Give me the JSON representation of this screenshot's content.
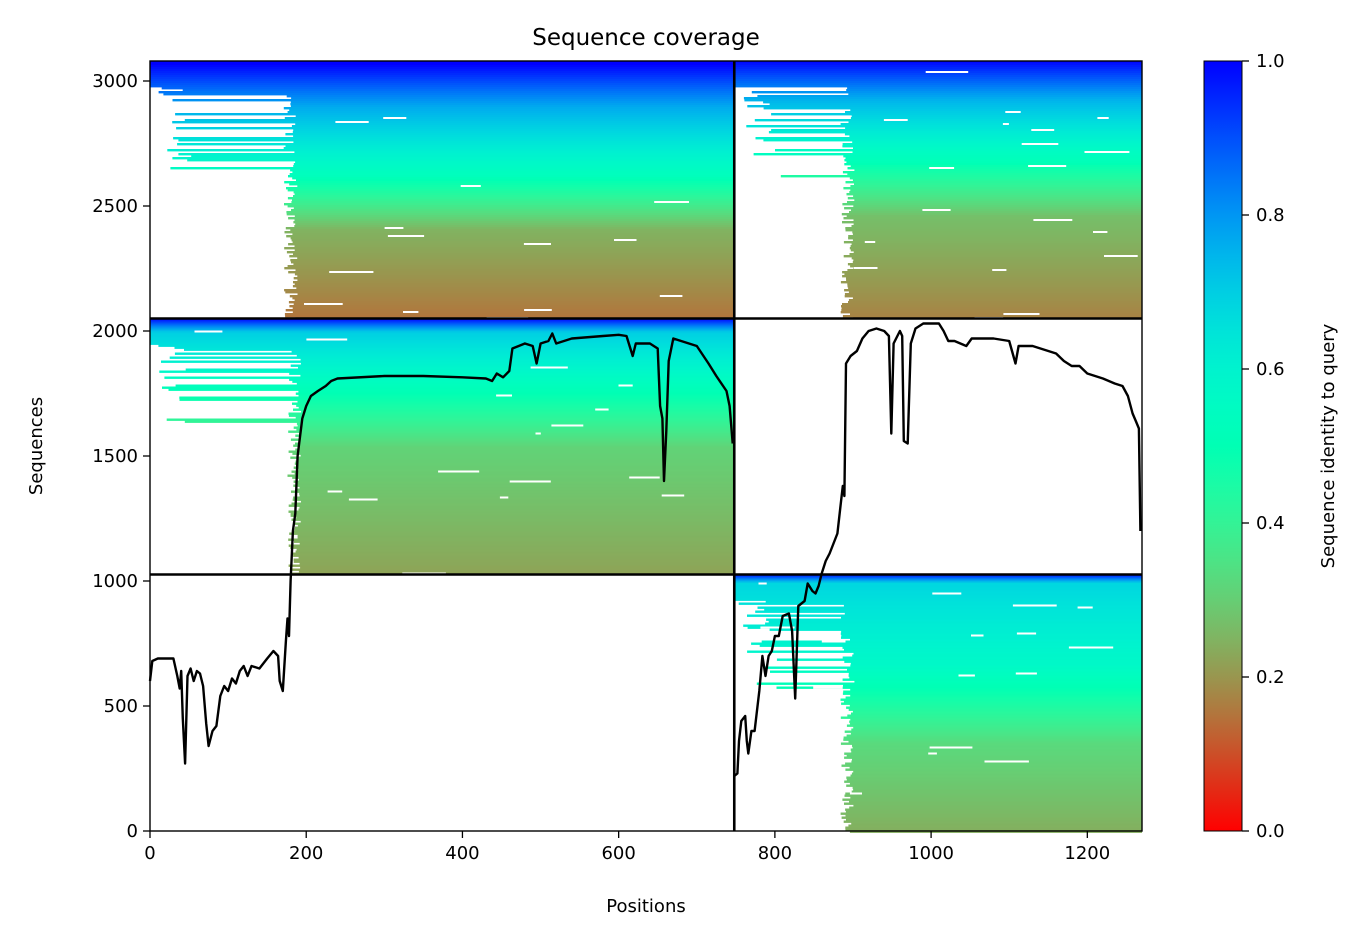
{
  "chart_data": {
    "type": "heatmap",
    "title": "Sequence coverage",
    "xlabel": "Positions",
    "ylabel": "Sequences",
    "xlim": [
      0,
      1270
    ],
    "ylim": [
      0,
      3080
    ],
    "x_ticks": [
      0,
      200,
      400,
      600,
      800,
      1000,
      1200
    ],
    "y_ticks": [
      0,
      500,
      1000,
      1500,
      2000,
      2500,
      3000
    ],
    "grid": false,
    "colormap": "rainbow_r",
    "chain_boundary_position": 748,
    "block_boundaries_sequences": [
      1026,
      2050
    ],
    "blocks": [
      {
        "x_range": [
          0,
          748
        ],
        "y_range": [
          2050,
          3080
        ],
        "coverage_start": 180,
        "profile": "top-left"
      },
      {
        "x_range": [
          748,
          1270
        ],
        "y_range": [
          2050,
          3080
        ],
        "coverage_start": 893,
        "profile": "top-right"
      },
      {
        "x_range": [
          0,
          748
        ],
        "y_range": [
          1026,
          2050
        ],
        "coverage_start": 185,
        "profile": "middle-left"
      },
      {
        "x_range": [
          748,
          1270
        ],
        "y_range": [
          0,
          1026
        ],
        "coverage_start": 893,
        "profile": "bottom-right"
      }
    ],
    "series": [
      {
        "type": "line",
        "color": "#000000",
        "points": [
          [
            0,
            600
          ],
          [
            3,
            680
          ],
          [
            10,
            690
          ],
          [
            20,
            690
          ],
          [
            30,
            690
          ],
          [
            35,
            620
          ],
          [
            38,
            570
          ],
          [
            40,
            640
          ],
          [
            42,
            450
          ],
          [
            45,
            270
          ],
          [
            48,
            620
          ],
          [
            52,
            650
          ],
          [
            56,
            600
          ],
          [
            60,
            640
          ],
          [
            64,
            630
          ],
          [
            68,
            580
          ],
          [
            72,
            430
          ],
          [
            75,
            340
          ],
          [
            80,
            400
          ],
          [
            85,
            420
          ],
          [
            90,
            540
          ],
          [
            95,
            580
          ],
          [
            100,
            560
          ],
          [
            105,
            610
          ],
          [
            110,
            590
          ],
          [
            115,
            640
          ],
          [
            120,
            660
          ],
          [
            125,
            620
          ],
          [
            130,
            660
          ],
          [
            140,
            650
          ],
          [
            150,
            690
          ],
          [
            158,
            720
          ],
          [
            164,
            700
          ],
          [
            166,
            600
          ],
          [
            170,
            560
          ],
          [
            174,
            760
          ],
          [
            176,
            850
          ],
          [
            178,
            780
          ],
          [
            180,
            1000
          ],
          [
            183,
            1200
          ],
          [
            186,
            1270
          ],
          [
            189,
            1500
          ],
          [
            195,
            1650
          ],
          [
            200,
            1700
          ],
          [
            206,
            1740
          ],
          [
            215,
            1760
          ],
          [
            225,
            1780
          ],
          [
            232,
            1800
          ],
          [
            240,
            1810
          ],
          [
            300,
            1820
          ],
          [
            350,
            1820
          ],
          [
            400,
            1815
          ],
          [
            430,
            1810
          ],
          [
            438,
            1800
          ],
          [
            444,
            1830
          ],
          [
            452,
            1815
          ],
          [
            460,
            1840
          ],
          [
            464,
            1930
          ],
          [
            472,
            1940
          ],
          [
            480,
            1950
          ],
          [
            490,
            1940
          ],
          [
            495,
            1870
          ],
          [
            500,
            1950
          ],
          [
            510,
            1960
          ],
          [
            515,
            1990
          ],
          [
            520,
            1950
          ],
          [
            540,
            1970
          ],
          [
            580,
            1980
          ],
          [
            600,
            1985
          ],
          [
            610,
            1980
          ],
          [
            618,
            1900
          ],
          [
            622,
            1950
          ],
          [
            640,
            1950
          ],
          [
            650,
            1930
          ],
          [
            653,
            1700
          ],
          [
            656,
            1650
          ],
          [
            658,
            1400
          ],
          [
            661,
            1600
          ],
          [
            664,
            1880
          ],
          [
            670,
            1970
          ],
          [
            680,
            1960
          ],
          [
            700,
            1940
          ],
          [
            715,
            1870
          ],
          [
            725,
            1820
          ],
          [
            738,
            1760
          ],
          [
            742,
            1700
          ],
          [
            746,
            1550
          ],
          [
            748,
            220
          ],
          [
            752,
            230
          ],
          [
            754,
            360
          ],
          [
            757,
            440
          ],
          [
            762,
            460
          ],
          [
            764,
            360
          ],
          [
            766,
            310
          ],
          [
            770,
            400
          ],
          [
            774,
            400
          ],
          [
            780,
            560
          ],
          [
            784,
            700
          ],
          [
            788,
            620
          ],
          [
            792,
            700
          ],
          [
            796,
            720
          ],
          [
            800,
            780
          ],
          [
            805,
            780
          ],
          [
            810,
            860
          ],
          [
            818,
            870
          ],
          [
            822,
            800
          ],
          [
            826,
            530
          ],
          [
            830,
            900
          ],
          [
            838,
            920
          ],
          [
            842,
            990
          ],
          [
            848,
            960
          ],
          [
            852,
            950
          ],
          [
            856,
            980
          ],
          [
            860,
            1030
          ],
          [
            865,
            1080
          ],
          [
            870,
            1110
          ],
          [
            880,
            1190
          ],
          [
            884,
            1300
          ],
          [
            887,
            1380
          ],
          [
            889,
            1340
          ],
          [
            891,
            1870
          ],
          [
            897,
            1900
          ],
          [
            905,
            1920
          ],
          [
            912,
            1970
          ],
          [
            920,
            2000
          ],
          [
            930,
            2010
          ],
          [
            940,
            2000
          ],
          [
            946,
            1980
          ],
          [
            949,
            1590
          ],
          [
            952,
            1950
          ],
          [
            960,
            2000
          ],
          [
            963,
            1980
          ],
          [
            965,
            1560
          ],
          [
            970,
            1550
          ],
          [
            974,
            1950
          ],
          [
            980,
            2010
          ],
          [
            990,
            2030
          ],
          [
            1000,
            2030
          ],
          [
            1010,
            2030
          ],
          [
            1016,
            2000
          ],
          [
            1022,
            1960
          ],
          [
            1030,
            1960
          ],
          [
            1045,
            1940
          ],
          [
            1052,
            1970
          ],
          [
            1080,
            1970
          ],
          [
            1100,
            1960
          ],
          [
            1108,
            1870
          ],
          [
            1112,
            1940
          ],
          [
            1130,
            1940
          ],
          [
            1150,
            1920
          ],
          [
            1160,
            1910
          ],
          [
            1170,
            1880
          ],
          [
            1180,
            1860
          ],
          [
            1190,
            1860
          ],
          [
            1200,
            1830
          ],
          [
            1220,
            1810
          ],
          [
            1235,
            1790
          ],
          [
            1245,
            1780
          ],
          [
            1252,
            1740
          ],
          [
            1258,
            1670
          ],
          [
            1262,
            1640
          ],
          [
            1266,
            1610
          ],
          [
            1268,
            1200
          ]
        ]
      }
    ]
  },
  "colorbar": {
    "label": "Sequence identity to query",
    "min": 0.0,
    "max": 1.0,
    "ticks": [
      "0.0",
      "0.2",
      "0.4",
      "0.6",
      "0.8",
      "1.0"
    ]
  }
}
